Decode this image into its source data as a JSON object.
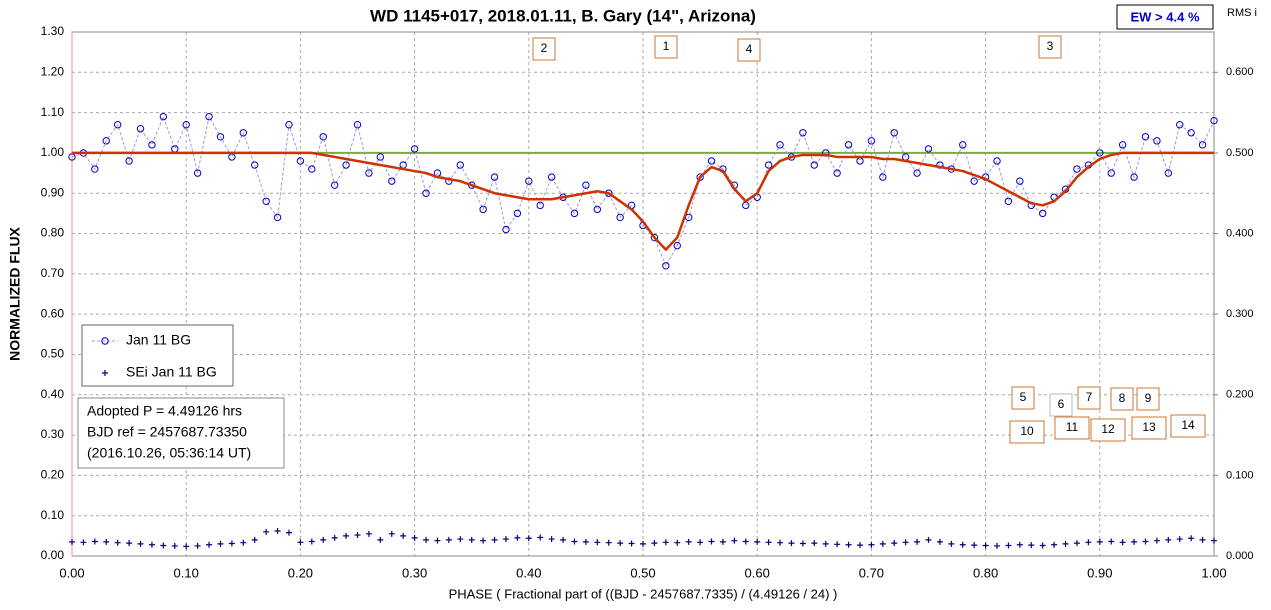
{
  "chart_data": {
    "type": "scatter",
    "title": "WD 1145+017, 2018.01.11, B. Gary (14\", Arizona)",
    "xlabel": "PHASE  ( Fractional part of ((BJD - 2457687.7335)  / (4.49126  / 24) )",
    "ylabel": "NORMALIZED  FLUX",
    "y2label": "RMS i",
    "ew_label": "EW >  4.4 %",
    "info": [
      "Adopted P = 4.49126 hrs",
      "BJD ref = 2457687.73350",
      "(2016.10.26, 05:36:14 UT)"
    ],
    "dip_labels": [
      "1",
      "2",
      "3",
      "4",
      "5",
      "6",
      "7",
      "8",
      "9",
      "10",
      "11",
      "12",
      "13",
      "14"
    ],
    "xlim": [
      0,
      1
    ],
    "ylim": [
      0,
      1.3
    ],
    "y2lim": [
      0,
      0.65
    ],
    "grid": true,
    "legend": "lower left",
    "xticks": [
      {
        "value": 0,
        "label": "0.00"
      },
      {
        "value": 0.1,
        "label": "0.10"
      },
      {
        "value": 0.2,
        "label": "0.20"
      },
      {
        "value": 0.3,
        "label": "0.30"
      },
      {
        "value": 0.4,
        "label": "0.40"
      },
      {
        "value": 0.5,
        "label": "0.50"
      },
      {
        "value": 0.6,
        "label": "0.60"
      },
      {
        "value": 0.7,
        "label": "0.70"
      },
      {
        "value": 0.8,
        "label": "0.80"
      },
      {
        "value": 0.9,
        "label": "0.90"
      },
      {
        "value": 1,
        "label": "1.00"
      }
    ],
    "yticks": [
      {
        "value": 0,
        "label": "0.00"
      },
      {
        "value": 0.1,
        "label": "0.10"
      },
      {
        "value": 0.2,
        "label": "0.20"
      },
      {
        "value": 0.3,
        "label": "0.30"
      },
      {
        "value": 0.4,
        "label": "0.40"
      },
      {
        "value": 0.5,
        "label": "0.50"
      },
      {
        "value": 0.6,
        "label": "0.60"
      },
      {
        "value": 0.7,
        "label": "0.70"
      },
      {
        "value": 0.8,
        "label": "0.80"
      },
      {
        "value": 0.9,
        "label": "0.90"
      },
      {
        "value": 1,
        "label": "1.00"
      },
      {
        "value": 1.1,
        "label": "1.10"
      },
      {
        "value": 1.2,
        "label": "1.20"
      },
      {
        "value": 1.3,
        "label": "1.30"
      }
    ],
    "y2ticks": [
      {
        "value": 0,
        "label": "0.000"
      },
      {
        "value": 0.1,
        "label": "0.100"
      },
      {
        "value": 0.2,
        "label": "0.200"
      },
      {
        "value": 0.3,
        "label": "0.300"
      },
      {
        "value": 0.4,
        "label": "0.400"
      },
      {
        "value": 0.5,
        "label": "0.500"
      },
      {
        "value": 0.6,
        "label": "0.600"
      }
    ],
    "x": [
      0,
      0.01,
      0.02,
      0.03,
      0.04,
      0.05,
      0.06,
      0.07,
      0.08,
      0.09,
      0.1,
      0.11,
      0.12,
      0.13,
      0.14,
      0.15,
      0.16,
      0.17,
      0.18,
      0.19,
      0.2,
      0.21,
      0.22,
      0.23,
      0.24,
      0.25,
      0.26,
      0.27,
      0.28,
      0.29,
      0.3,
      0.31,
      0.32,
      0.33,
      0.34,
      0.35,
      0.36,
      0.37,
      0.38,
      0.39,
      0.4,
      0.41,
      0.42,
      0.43,
      0.44,
      0.45,
      0.46,
      0.47,
      0.48,
      0.49,
      0.5,
      0.51,
      0.52,
      0.53,
      0.54,
      0.55,
      0.56,
      0.57,
      0.58,
      0.59,
      0.6,
      0.61,
      0.62,
      0.63,
      0.64,
      0.65,
      0.66,
      0.67,
      0.68,
      0.69,
      0.7,
      0.71,
      0.72,
      0.73,
      0.74,
      0.75,
      0.76,
      0.77,
      0.78,
      0.79,
      0.8,
      0.81,
      0.82,
      0.83,
      0.84,
      0.85,
      0.86,
      0.87,
      0.88,
      0.89,
      0.9,
      0.91,
      0.92,
      0.93,
      0.94,
      0.95,
      0.96,
      0.97,
      0.98,
      0.99,
      1
    ],
    "series": [
      {
        "name": "Jan 11 BG",
        "color": "#0000cc",
        "marker": "circle",
        "values": [
          0.99,
          1.0,
          0.96,
          1.03,
          1.07,
          0.98,
          1.06,
          1.02,
          1.09,
          1.01,
          1.07,
          0.95,
          1.09,
          1.04,
          0.99,
          1.05,
          0.97,
          0.88,
          0.84,
          1.07,
          0.98,
          0.96,
          1.04,
          0.92,
          0.97,
          1.07,
          0.95,
          0.99,
          0.93,
          0.97,
          1.01,
          0.9,
          0.95,
          0.93,
          0.97,
          0.92,
          0.86,
          0.94,
          0.81,
          0.85,
          0.93,
          0.87,
          0.94,
          0.89,
          0.85,
          0.92,
          0.86,
          0.9,
          0.84,
          0.87,
          0.82,
          0.79,
          0.72,
          0.77,
          0.84,
          0.94,
          0.98,
          0.96,
          0.92,
          0.87,
          0.89,
          0.97,
          1.02,
          0.99,
          1.05,
          0.97,
          1.0,
          0.95,
          1.02,
          0.98,
          1.03,
          0.94,
          1.05,
          0.99,
          0.95,
          1.01,
          0.97,
          0.96,
          1.02,
          0.93,
          0.94,
          0.98,
          0.88,
          0.93,
          0.87,
          0.85,
          0.89,
          0.91,
          0.96,
          0.97,
          1.0,
          0.95,
          1.02,
          0.94,
          1.04,
          1.03,
          0.95,
          1.07,
          1.05,
          1.02,
          1.08
        ]
      },
      {
        "name": "SEi Jan 11 BG",
        "color": "#000080",
        "marker": "plus",
        "values": [
          0.035,
          0.034,
          0.036,
          0.035,
          0.033,
          0.032,
          0.03,
          0.028,
          0.026,
          0.025,
          0.024,
          0.025,
          0.028,
          0.03,
          0.031,
          0.033,
          0.04,
          0.06,
          0.062,
          0.058,
          0.034,
          0.036,
          0.04,
          0.045,
          0.05,
          0.052,
          0.055,
          0.04,
          0.055,
          0.05,
          0.045,
          0.04,
          0.038,
          0.04,
          0.042,
          0.04,
          0.038,
          0.04,
          0.042,
          0.045,
          0.044,
          0.046,
          0.042,
          0.04,
          0.036,
          0.035,
          0.034,
          0.033,
          0.032,
          0.031,
          0.03,
          0.032,
          0.034,
          0.033,
          0.035,
          0.034,
          0.036,
          0.035,
          0.038,
          0.036,
          0.035,
          0.034,
          0.033,
          0.032,
          0.031,
          0.032,
          0.03,
          0.029,
          0.028,
          0.027,
          0.028,
          0.03,
          0.032,
          0.034,
          0.035,
          0.04,
          0.035,
          0.03,
          0.028,
          0.027,
          0.026,
          0.025,
          0.026,
          0.028,
          0.027,
          0.026,
          0.028,
          0.03,
          0.032,
          0.034,
          0.035,
          0.036,
          0.034,
          0.035,
          0.036,
          0.038,
          0.04,
          0.042,
          0.044,
          0.04,
          0.038
        ]
      }
    ],
    "model": {
      "color": "#cc3300",
      "values": [
        1,
        1,
        1,
        1,
        1,
        1,
        1,
        1,
        1,
        1,
        1,
        1,
        1,
        1,
        1,
        1,
        1,
        1,
        1,
        1,
        1,
        1,
        0.995,
        0.99,
        0.985,
        0.98,
        0.975,
        0.97,
        0.965,
        0.96,
        0.955,
        0.95,
        0.94,
        0.935,
        0.93,
        0.92,
        0.91,
        0.9,
        0.895,
        0.89,
        0.885,
        0.885,
        0.885,
        0.89,
        0.895,
        0.9,
        0.905,
        0.9,
        0.88,
        0.86,
        0.83,
        0.79,
        0.76,
        0.79,
        0.87,
        0.94,
        0.965,
        0.955,
        0.91,
        0.88,
        0.9,
        0.955,
        0.98,
        0.99,
        0.995,
        0.995,
        0.995,
        0.99,
        0.99,
        0.99,
        0.99,
        0.985,
        0.985,
        0.98,
        0.975,
        0.97,
        0.965,
        0.96,
        0.955,
        0.945,
        0.935,
        0.92,
        0.905,
        0.89,
        0.875,
        0.87,
        0.88,
        0.905,
        0.94,
        0.965,
        0.985,
        0.995,
        1,
        1,
        1,
        1,
        1,
        1,
        1,
        1,
        1
      ]
    },
    "baseline": {
      "value": 1,
      "color": "#77aa44"
    }
  }
}
